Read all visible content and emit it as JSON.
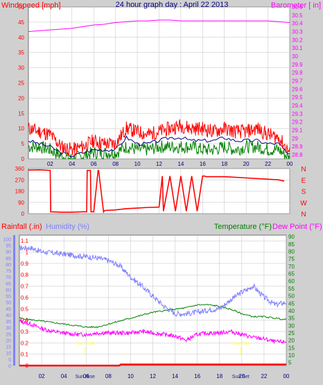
{
  "title": "24 hour graph day : April 22 2013",
  "colors": {
    "background": "#d0d0d0",
    "plot_bg": "#ffffff",
    "grid": "#c0c0c0",
    "wind": "#ff0000",
    "wind_avg": "#008000",
    "wind_dark": "#000080",
    "barometer": "#ff00ff",
    "direction": "#ff0000",
    "rain": "#ff0000",
    "humidity": "#8080ff",
    "temperature": "#008000",
    "dewpoint": "#ff00ff",
    "title_text": "#000080",
    "sun": "#ffff66"
  },
  "chart_data": [
    {
      "type": "line",
      "panel": "wind",
      "left_label": "Windspeed [mph]",
      "right_label": "Barometer [ in]",
      "x_ticks": [
        "02",
        "04",
        "06",
        "08",
        "10",
        "12",
        "14",
        "16",
        "18",
        "20",
        "22",
        "00"
      ],
      "left_ticks": [
        "0",
        "5",
        "10",
        "15",
        "20",
        "25",
        "30",
        "35",
        "40",
        "45",
        "50"
      ],
      "right_ticks": [
        "28.8",
        "28.9",
        "29",
        "29.1",
        "29.2",
        "29.3",
        "29.4",
        "29.5",
        "29.6",
        "29.7",
        "29.8",
        "29.9",
        "30",
        "30.1",
        "30.2",
        "30.3",
        "30.4",
        "30.5",
        "30.6"
      ],
      "left_range": [
        0,
        50
      ],
      "right_range": [
        28.75,
        30.6
      ],
      "x_range": [
        0,
        24
      ],
      "grid": true,
      "series": [
        {
          "name": "Barometer",
          "axis": "right",
          "x": [
            0,
            1,
            2,
            3,
            4,
            5,
            6,
            7,
            8,
            9,
            10,
            11,
            12,
            13,
            14,
            15,
            16,
            17,
            18,
            19,
            20,
            21,
            22,
            23,
            24
          ],
          "values": [
            30.3,
            30.31,
            30.32,
            30.33,
            30.34,
            30.36,
            30.38,
            30.39,
            30.41,
            30.42,
            30.43,
            30.43,
            30.44,
            30.44,
            30.43,
            30.43,
            30.43,
            30.43,
            30.43,
            30.43,
            30.43,
            30.43,
            30.43,
            30.42,
            30.41
          ]
        },
        {
          "name": "Wind gust",
          "axis": "left",
          "x": [
            0,
            1,
            2,
            3,
            4,
            5,
            6,
            7,
            8,
            9,
            10,
            11,
            12,
            13,
            14,
            15,
            16,
            17,
            18,
            19,
            20,
            21,
            22,
            23,
            24
          ],
          "values": [
            10,
            9,
            8,
            4,
            3,
            4,
            6,
            5,
            5,
            10,
            9,
            8,
            9,
            10,
            11,
            10,
            10,
            9,
            10,
            9,
            9,
            10,
            8,
            7,
            2
          ]
        },
        {
          "name": "Wind average",
          "axis": "left",
          "x": [
            0,
            1,
            2,
            3,
            4,
            5,
            6,
            7,
            8,
            9,
            10,
            11,
            12,
            13,
            14,
            15,
            16,
            17,
            18,
            19,
            20,
            21,
            22,
            23,
            24
          ],
          "values": [
            6,
            5,
            4,
            2,
            1,
            2,
            3,
            3,
            3,
            7,
            5,
            5,
            6,
            7,
            7,
            6,
            6,
            6,
            7,
            6,
            6,
            6,
            5,
            5,
            1
          ]
        },
        {
          "name": "Wind speed",
          "axis": "left",
          "x": [
            0,
            1,
            2,
            3,
            4,
            5,
            6,
            7,
            8,
            9,
            10,
            11,
            12,
            13,
            14,
            15,
            16,
            17,
            18,
            19,
            20,
            21,
            22,
            23,
            24
          ],
          "values": [
            4,
            4,
            3,
            1,
            0,
            1,
            2,
            2,
            2,
            4,
            3,
            3,
            4,
            4,
            4,
            4,
            3,
            3,
            4,
            3,
            4,
            4,
            3,
            3,
            0
          ]
        }
      ]
    },
    {
      "type": "line",
      "panel": "direction",
      "left_ticks": [
        "0",
        "90",
        "180",
        "270",
        "360"
      ],
      "right_ticks": [
        "N",
        "W",
        "S",
        "E",
        "N"
      ],
      "y_range": [
        0,
        360
      ],
      "x_range": [
        0,
        24
      ],
      "grid": true,
      "series": [
        {
          "name": "Wind direction",
          "x": [
            0,
            1,
            2,
            2.05,
            3,
            4,
            5,
            5.35,
            5.4,
            5.7,
            5.75,
            6,
            6.4,
            6.45,
            6.9,
            6.95,
            7,
            8,
            9,
            10,
            11,
            12,
            12.3,
            12.4,
            13,
            13.5,
            14,
            14.5,
            15,
            15.5,
            16,
            16.2,
            16.3,
            17,
            18,
            19,
            20,
            21,
            22,
            23,
            23.5
          ],
          "values": [
            348,
            350,
            345,
            15,
            12,
            12,
            15,
            15,
            345,
            345,
            15,
            15,
            345,
            345,
            14,
            20,
            25,
            30,
            40,
            45,
            50,
            52,
            300,
            20,
            300,
            20,
            300,
            20,
            300,
            20,
            300,
            300,
            295,
            295,
            295,
            290,
            285,
            280,
            275,
            270,
            260
          ]
        }
      ]
    },
    {
      "type": "line",
      "panel": "rain_humidity_temperature",
      "left_label_1": "Rainfall (.in)",
      "left_label_2": "Humidity (%)",
      "right_label_1": "Temperature (°F)",
      "right_label_2": "Dew Point (°F)",
      "rain_ticks": [
        "0",
        "0.1",
        "0.2",
        "0.3",
        "0.4",
        "0.5",
        "0.6",
        "0.7",
        "0.8",
        "0.9",
        "1",
        "1.1"
      ],
      "humidity_ticks": [
        "0",
        "5",
        "10",
        "15",
        "20",
        "25",
        "30",
        "35",
        "40",
        "45",
        "50",
        "55",
        "60",
        "65",
        "70",
        "75",
        "80",
        "85",
        "90",
        "95",
        "100"
      ],
      "temp_ticks": [
        "5",
        "10",
        "15",
        "20",
        "25",
        "30",
        "35",
        "40",
        "45",
        "50",
        "55",
        "60",
        "65",
        "70",
        "75",
        "80",
        "85",
        "90"
      ],
      "rain_range": [
        0,
        1.15
      ],
      "humidity_range": [
        0,
        103
      ],
      "temp_range": [
        3,
        91
      ],
      "x_range": [
        0,
        24
      ],
      "grid": true,
      "sun_markers": [
        {
          "label": "Sun Rise",
          "x": 5.9
        },
        {
          "label": "Sun Set",
          "x": 19.9
        }
      ],
      "bottom_x_labels": [
        "02",
        "04",
        "06",
        "08",
        "10",
        "12",
        "14",
        "16",
        "18",
        "20",
        "22",
        "00"
      ],
      "bottom_sun_labels": [
        "Sun Rise",
        "Sun Set"
      ],
      "series": [
        {
          "name": "Humidity",
          "axis": "humidity",
          "x": [
            0,
            1,
            2,
            3,
            4,
            5,
            6,
            7,
            8,
            9,
            10,
            11,
            12,
            13,
            14,
            15,
            16,
            17,
            18,
            19,
            20,
            20.5,
            21,
            22,
            23,
            24
          ],
          "values": [
            93,
            93,
            90,
            89,
            88,
            87,
            86,
            85,
            83,
            79,
            70,
            63,
            55,
            47,
            41,
            41,
            42,
            44,
            45,
            52,
            58,
            60,
            63,
            54,
            48,
            50
          ]
        },
        {
          "name": "Temperature",
          "axis": "temperature",
          "x": [
            0,
            1,
            2,
            3,
            4,
            5,
            6,
            7,
            8,
            9,
            10,
            11,
            12,
            13,
            14,
            15,
            16,
            17,
            18,
            19,
            20,
            21,
            22,
            23,
            24
          ],
          "values": [
            35,
            34,
            33,
            32,
            31,
            30,
            29,
            29,
            31,
            33,
            35,
            37,
            39,
            40,
            41,
            42,
            44,
            44,
            43,
            41,
            38,
            36,
            36,
            35,
            34
          ]
        },
        {
          "name": "Dew Point",
          "axis": "temperature",
          "x": [
            0,
            1,
            2,
            3,
            4,
            5,
            6,
            7,
            8,
            9,
            10,
            11,
            12,
            13,
            14,
            15,
            16,
            17,
            18,
            19,
            20,
            21,
            22,
            23,
            24
          ],
          "values": [
            33,
            31,
            28,
            26,
            25,
            24,
            24,
            25,
            25,
            25,
            25,
            26,
            25,
            24,
            23,
            20,
            24,
            25,
            25,
            26,
            24,
            22,
            21,
            19,
            19
          ]
        },
        {
          "name": "Rainfall",
          "axis": "rain",
          "x": [
            0,
            9,
            9.1,
            24
          ],
          "values": [
            0,
            0,
            0.01,
            0.01
          ]
        }
      ]
    }
  ]
}
